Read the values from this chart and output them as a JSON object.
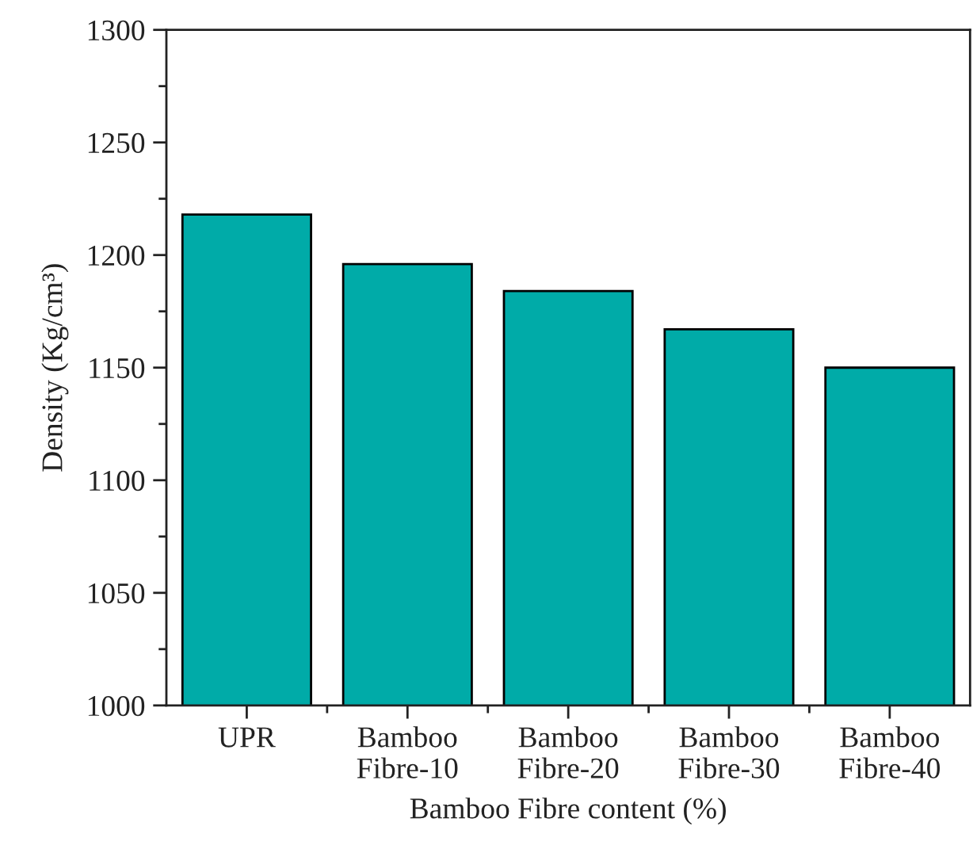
{
  "chart_data": {
    "type": "bar",
    "xlabel": "Bamboo Fibre content (%)",
    "ylabel": "Density (Kg/cm³)",
    "categories": [
      "UPR",
      "Bamboo\nFibre-10",
      "Bamboo\nFibre-20",
      "Bamboo\nFibre-30",
      "Bamboo\nFibre-40"
    ],
    "values": [
      1218,
      1196,
      1184,
      1167,
      1150
    ],
    "color": "#00aba8",
    "ylim": [
      1000,
      1300
    ],
    "yticks": [
      1000,
      {
        "value": 1025,
        "label": null
      },
      1050,
      {
        "value": 1075,
        "label": null
      },
      1100,
      {
        "value": 1125,
        "label": null
      },
      1150,
      {
        "value": 1175,
        "label": null
      },
      1200,
      {
        "value": 1225,
        "label": null
      },
      1250,
      {
        "value": 1275,
        "label": null
      },
      1300
    ],
    "grid": false,
    "legend": false
  }
}
